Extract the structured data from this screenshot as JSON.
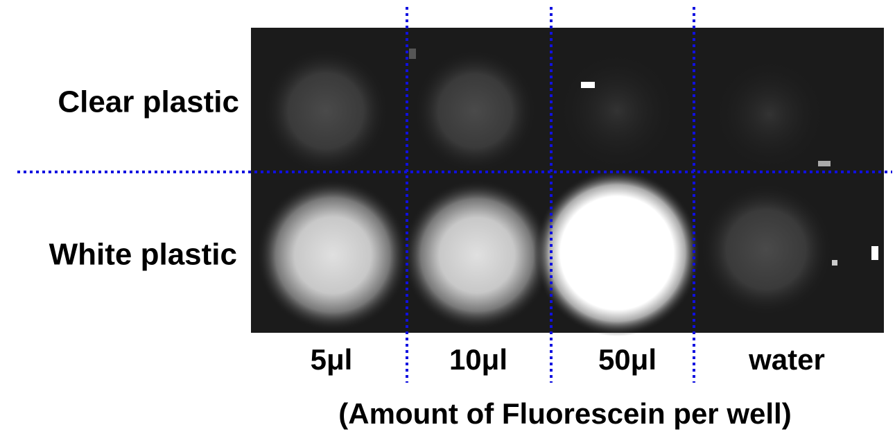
{
  "row_labels": [
    "Clear plastic",
    "White plastic"
  ],
  "column_labels": [
    "5μl",
    "10μl",
    "50μl",
    "water"
  ],
  "caption": "(Amount of Fluorescein per well)"
}
